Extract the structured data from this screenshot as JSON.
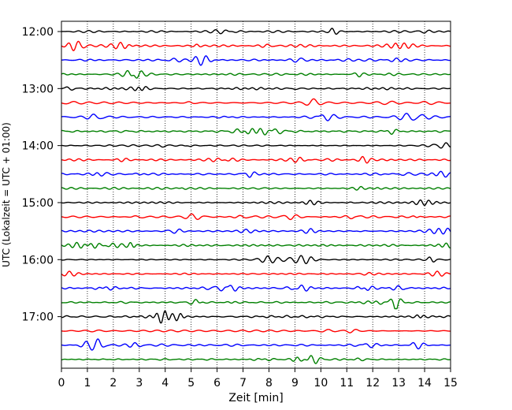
{
  "chart_data": {
    "type": "line",
    "title": "",
    "xlabel": "Zeit  [min]",
    "ylabel": "UTC (Lokalzeit = UTC + 01:00)",
    "xlim": [
      0,
      15
    ],
    "x_ticks": [
      0,
      1,
      2,
      3,
      4,
      5,
      6,
      7,
      8,
      9,
      10,
      11,
      12,
      13,
      14,
      15
    ],
    "x_tick_labels": [
      "0",
      "1",
      "2",
      "3",
      "4",
      "5",
      "6",
      "7",
      "8",
      "9",
      "10",
      "11",
      "12",
      "13",
      "14",
      "15"
    ],
    "y_tick_labels": [
      "12:00",
      "13:00",
      "14:00",
      "15:00",
      "16:00",
      "17:00"
    ],
    "trace_start_times": [
      "12:00",
      "12:15",
      "12:30",
      "12:45",
      "13:00",
      "13:15",
      "13:30",
      "13:45",
      "14:00",
      "14:15",
      "14:30",
      "14:45",
      "15:00",
      "15:15",
      "15:30",
      "15:45",
      "16:00",
      "16:15",
      "16:30",
      "16:45",
      "17:00",
      "17:15",
      "17:30",
      "17:45"
    ],
    "trace_colors": [
      "#000000",
      "#ff0000",
      "#0000ff",
      "#008000"
    ],
    "grid_x": true,
    "grid_style": "dotted",
    "legend": "none"
  }
}
